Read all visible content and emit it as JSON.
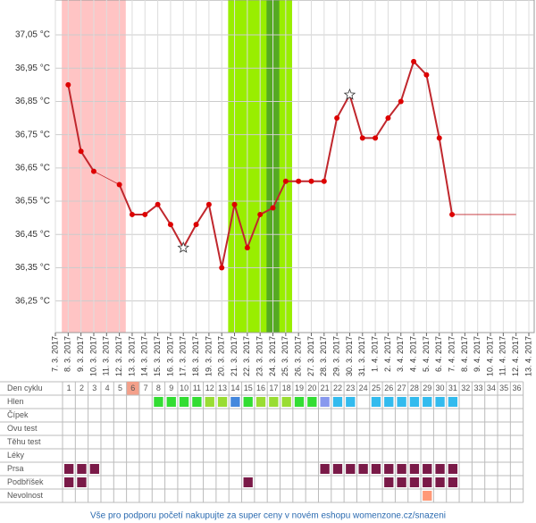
{
  "chart_data": {
    "type": "line",
    "x": [
      "7. 3. 2017",
      "8. 3. 2017",
      "9. 3. 2017",
      "10. 3. 2017",
      "11. 3. 2017",
      "12. 3. 2017",
      "13. 3. 2017",
      "14. 3. 2017",
      "15. 3. 2017",
      "16. 3. 2017",
      "17. 3. 2017",
      "18. 3. 2017",
      "19. 3. 2017",
      "20. 3. 2017",
      "21. 3. 2017",
      "22. 3. 2017",
      "23. 3. 2017",
      "24. 3. 2017",
      "25. 3. 2017",
      "26. 3. 2017",
      "27. 3. 2017",
      "28. 3. 2017",
      "29. 3. 2017",
      "30. 3. 2017",
      "31. 3. 2017",
      "1. 4. 2017",
      "2. 4. 2017",
      "3. 4. 2017",
      "4. 4. 2017",
      "5. 4. 2017",
      "6. 4. 2017",
      "7. 4. 2017",
      "8. 4. 2017",
      "9. 4. 2017",
      "10. 4. 2017",
      "11. 4. 2017",
      "12. 4. 2017",
      "13. 4. 2017"
    ],
    "series": [
      {
        "color": "#c0272d",
        "values": [
          null,
          36.9,
          36.7,
          36.64,
          null,
          36.6,
          36.51,
          36.51,
          36.54,
          36.48,
          36.41,
          36.48,
          36.54,
          36.35,
          36.54,
          36.41,
          36.51,
          36.53,
          36.61,
          36.61,
          36.61,
          36.61,
          36.8,
          36.87,
          36.74,
          36.74,
          36.8,
          36.85,
          36.97,
          36.93,
          36.74,
          36.51,
          null,
          null,
          null,
          null,
          null,
          null
        ]
      }
    ],
    "star_points": [
      10,
      23
    ],
    "projection_end_index": 36,
    "shaded_ranges": [
      {
        "from": 1,
        "to": 5,
        "color": "#ffc4c4"
      },
      {
        "from": 14,
        "to": 18,
        "color": "#99ee00"
      },
      {
        "from": 17,
        "to": 17,
        "color": "#55aa22"
      }
    ],
    "ylim": [
      36.155,
      37.155
    ],
    "yticks": [
      {
        "value": 36.25,
        "label": "36,25 °C"
      },
      {
        "value": 36.35,
        "label": "36,35 °C"
      },
      {
        "value": 36.45,
        "label": "36,45 °C"
      },
      {
        "value": 36.55,
        "label": "36,55 °C"
      },
      {
        "value": 36.65,
        "label": "36,65 °C"
      },
      {
        "value": 36.75,
        "label": "36,75 °C"
      },
      {
        "value": 36.85,
        "label": "36,85 °C"
      },
      {
        "value": 36.95,
        "label": "36,95 °C"
      },
      {
        "value": 37.05,
        "label": "37,05 °C"
      }
    ],
    "grid": true
  },
  "table": {
    "header_label": "Den cyklu",
    "days": [
      1,
      2,
      3,
      4,
      5,
      6,
      7,
      8,
      9,
      10,
      11,
      12,
      13,
      14,
      15,
      16,
      17,
      18,
      19,
      20,
      21,
      22,
      23,
      24,
      25,
      26,
      27,
      28,
      29,
      30,
      31,
      32,
      33,
      34,
      35,
      36
    ],
    "highlight_day_index": 5,
    "highlight_color": "#f4a08a",
    "rows": [
      {
        "label": "Hlen",
        "cells": [
          null,
          null,
          null,
          null,
          null,
          null,
          null,
          "#33dd33",
          "#33dd33",
          "#33dd33",
          "#33dd33",
          "#99dd33",
          "#99dd33",
          "#4488dd",
          "#33dd33",
          "#99dd33",
          "#99dd33",
          "#99dd33",
          "#33dd33",
          "#33dd33",
          "#8899ee",
          "#33bbee",
          "#33bbee",
          null,
          "#33bbee",
          "#33bbee",
          "#33bbee",
          "#33bbee",
          "#33bbee",
          "#33bbee",
          "#33bbee",
          null,
          null,
          null,
          null,
          null
        ]
      },
      {
        "label": "Čípek",
        "cells": []
      },
      {
        "label": "Ovu test",
        "cells": []
      },
      {
        "label": "Těhu test",
        "cells": []
      },
      {
        "label": "Léky",
        "cells": []
      },
      {
        "label": "Prsa",
        "cells": [
          "#7a1a48",
          "#7a1a48",
          "#7a1a48",
          null,
          null,
          null,
          null,
          null,
          null,
          null,
          null,
          null,
          null,
          null,
          null,
          null,
          null,
          null,
          null,
          null,
          "#7a1a48",
          "#7a1a48",
          "#7a1a48",
          "#7a1a48",
          "#7a1a48",
          "#7a1a48",
          "#7a1a48",
          "#7a1a48",
          "#7a1a48",
          "#7a1a48",
          "#7a1a48",
          null,
          null,
          null,
          null,
          null
        ]
      },
      {
        "label": "Podbříšek",
        "cells": [
          "#7a1a48",
          "#7a1a48",
          null,
          null,
          null,
          null,
          null,
          null,
          null,
          null,
          null,
          null,
          null,
          null,
          "#7a1a48",
          null,
          null,
          null,
          null,
          null,
          null,
          null,
          null,
          null,
          null,
          "#7a1a48",
          "#7a1a48",
          "#7a1a48",
          "#7a1a48",
          "#7a1a48",
          "#7a1a48",
          null,
          null,
          null,
          null,
          null
        ]
      },
      {
        "label": "Nevolnost",
        "cells": [
          null,
          null,
          null,
          null,
          null,
          null,
          null,
          null,
          null,
          null,
          null,
          null,
          null,
          null,
          null,
          null,
          null,
          null,
          null,
          null,
          null,
          null,
          null,
          null,
          null,
          null,
          null,
          null,
          "#ff9977",
          null,
          null,
          null,
          null,
          null,
          null,
          null
        ]
      }
    ]
  },
  "footer": {
    "link": "Vše pro podporu početí nakupujte za super ceny v novém eshopu womenzone.cz/snazeni"
  }
}
